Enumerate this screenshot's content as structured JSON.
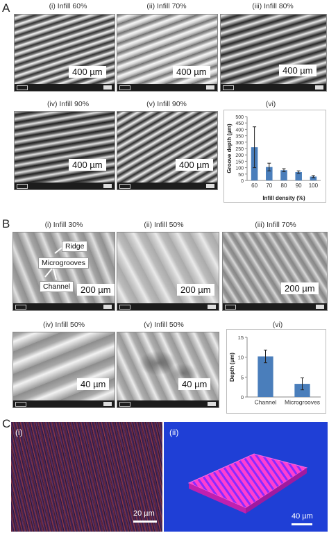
{
  "panels": {
    "A": {
      "letter": "A",
      "images": [
        {
          "caption": "(i) Infill 60%",
          "scale": "400 µm"
        },
        {
          "caption": "(ii) Infill 70%",
          "scale": "400 µm"
        },
        {
          "caption": "(iii) Infill 80%",
          "scale": "400 µm"
        },
        {
          "caption": "(iv) Infill 90%",
          "scale": "400 µm"
        },
        {
          "caption": "(v) Infill 90%",
          "scale": "400 µm"
        }
      ],
      "chart_caption": "(vi)"
    },
    "B": {
      "letter": "B",
      "images": [
        {
          "caption": "(i) Infill 30%",
          "scale": "200 µm"
        },
        {
          "caption": "(ii) Infill 50%",
          "scale": "200 µm"
        },
        {
          "caption": "(iii) Infill 70%",
          "scale": "200 µm"
        },
        {
          "caption": "(iv) Infill 50%",
          "scale": "40 µm"
        },
        {
          "caption": "(v) Infill 50%",
          "scale": "40 µm"
        }
      ],
      "annotations": {
        "ridge": "Ridge",
        "microgrooves": "Microgrooves",
        "channel": "Channel"
      },
      "chart_caption": "(vi)"
    },
    "C": {
      "letter": "C",
      "images": [
        {
          "caption": "(i)",
          "scale": "20 µm"
        },
        {
          "caption": "(ii)",
          "scale": "40 µm"
        }
      ]
    }
  },
  "chart_data": [
    {
      "type": "bar",
      "panel": "A(vi)",
      "categories": [
        "60",
        "70",
        "80",
        "90",
        "100"
      ],
      "values": [
        260,
        105,
        80,
        65,
        30
      ],
      "errors": [
        160,
        30,
        12,
        10,
        8
      ],
      "xlabel": "Infill density (%)",
      "ylabel": "Groove depth (µm)",
      "ylim": [
        0,
        500
      ],
      "yticks": [
        "0",
        "50",
        "100",
        "150",
        "200",
        "250",
        "300",
        "350",
        "400",
        "450",
        "500"
      ],
      "bar_color": "#4a7ebb",
      "grid": false
    },
    {
      "type": "bar",
      "panel": "B(vi)",
      "categories": [
        "Channel",
        "Microgrooves"
      ],
      "values": [
        10.2,
        3.3
      ],
      "errors": [
        1.6,
        1.5
      ],
      "xlabel": "",
      "ylabel": "Depth (µm)",
      "ylim": [
        0,
        15
      ],
      "yticks": [
        "0",
        "5",
        "10",
        "15"
      ],
      "bar_color": "#4a7ebb",
      "grid": false
    }
  ]
}
